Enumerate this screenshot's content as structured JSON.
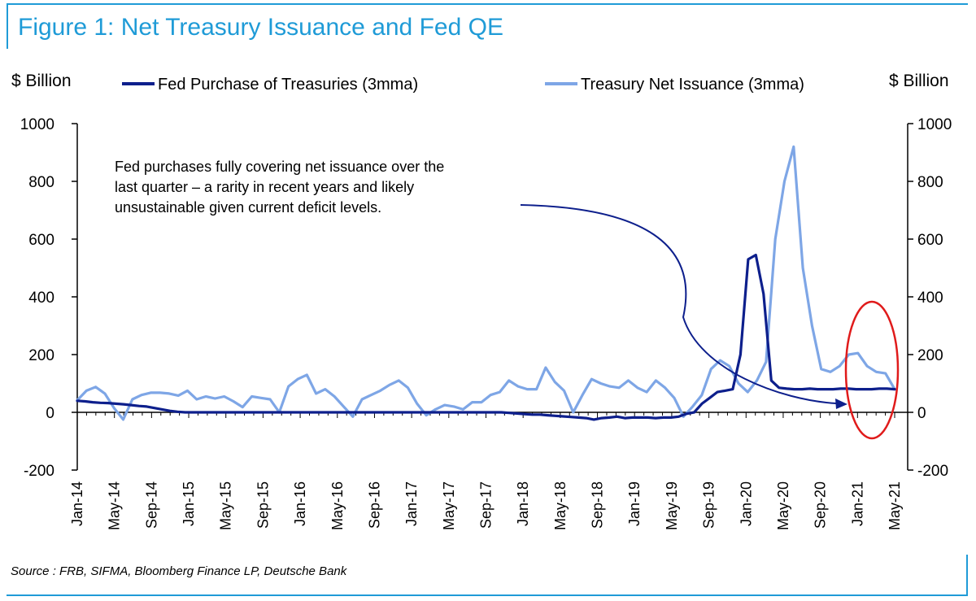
{
  "title": "Figure 1: Net Treasury Issuance and Fed QE",
  "source": "Source : FRB, SIFMA, Bloomberg Finance LP, Deutsche Bank",
  "colors": {
    "frame": "#1f9bd7",
    "fed": "#0d1f8c",
    "treasury": "#7ea6e6",
    "circle": "#e01b1b"
  },
  "chart_data": {
    "type": "line",
    "y_unit_left": "$ Billion",
    "y_unit_right": "$ Billion",
    "ylim": [
      -200,
      1000
    ],
    "yticks": [
      "-200",
      "0",
      "200",
      "400",
      "600",
      "800",
      "1000"
    ],
    "ytick_values": [
      -200,
      0,
      200,
      400,
      600,
      800,
      1000
    ],
    "xticks": [
      "Jan-14",
      "May-14",
      "Sep-14",
      "Jan-15",
      "May-15",
      "Sep-15",
      "Jan-16",
      "May-16",
      "Sep-16",
      "Jan-17",
      "May-17",
      "Sep-17",
      "Jan-18",
      "May-18",
      "Sep-18",
      "Jan-19",
      "May-19",
      "Sep-19",
      "Jan-20",
      "May-20",
      "Sep-20",
      "Jan-21",
      "May-21"
    ],
    "x_start": "Jan-14",
    "x_end": "May-21",
    "legend_position": "top",
    "grid": false,
    "annotation": "Fed purchases fully covering net issuance over the last quarter – a rarity in recent years and likely unsustainable given current deficit levels.",
    "annotation_lines": [
      "Fed purchases fully covering net issuance over the",
      "last quarter – a rarity in recent years and likely",
      "unsustainable given current deficit levels."
    ],
    "series": [
      {
        "name": "Fed Purchase of Treasuries (3mma)",
        "values": [
          40,
          38,
          35,
          33,
          32,
          30,
          28,
          25,
          22,
          20,
          15,
          10,
          5,
          2,
          0,
          0,
          0,
          0,
          0,
          0,
          0,
          0,
          0,
          0,
          0,
          0,
          0,
          0,
          0,
          0,
          0,
          0,
          0,
          0,
          0,
          0,
          0,
          0,
          0,
          0,
          0,
          0,
          0,
          0,
          0,
          0,
          0,
          0,
          0,
          0,
          0,
          0,
          0,
          0,
          0,
          0,
          -2,
          -4,
          -6,
          -8,
          -8,
          -10,
          -12,
          -14,
          -16,
          -18,
          -20,
          -25,
          -20,
          -18,
          -15,
          -20,
          -18,
          -18,
          -18,
          -20,
          -18,
          -18,
          -15,
          -5,
          0,
          30,
          50,
          70,
          75,
          80,
          200,
          530,
          545,
          410,
          110,
          85,
          82,
          80,
          80,
          82,
          80,
          80,
          80,
          82,
          82,
          80,
          80,
          80,
          82,
          82,
          80
        ]
      },
      {
        "name": "Treasury Net Issuance (3mma)",
        "values": [
          42,
          75,
          88,
          65,
          15,
          -25,
          45,
          60,
          68,
          68,
          65,
          58,
          75,
          45,
          55,
          48,
          55,
          38,
          18,
          55,
          50,
          45,
          0,
          90,
          115,
          130,
          65,
          80,
          55,
          20,
          -15,
          45,
          60,
          75,
          95,
          110,
          85,
          30,
          -10,
          10,
          25,
          20,
          10,
          35,
          35,
          60,
          70,
          110,
          90,
          80,
          80,
          155,
          105,
          75,
          0,
          60,
          115,
          100,
          90,
          85,
          110,
          85,
          70,
          110,
          85,
          50,
          -15,
          20,
          60,
          150,
          180,
          160,
          100,
          70,
          110,
          175,
          600,
          800,
          920,
          500,
          300,
          150,
          140,
          160,
          200,
          205,
          160,
          140,
          135,
          80
        ]
      }
    ]
  }
}
